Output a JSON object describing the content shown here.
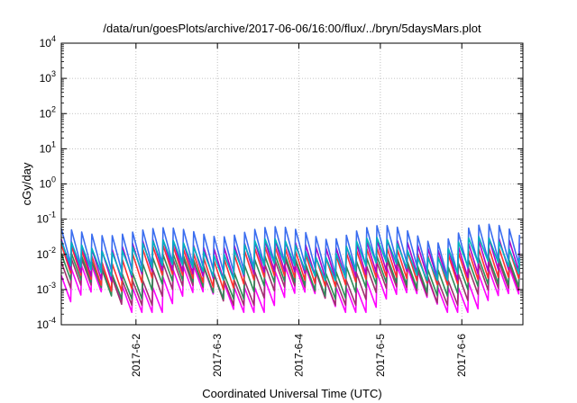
{
  "chart_data": {
    "type": "line",
    "title": "/data/run/goesPlots/archive/2017-06-06/16:00/flux/../bryn/5daysMars.plot",
    "xlabel": "Coordinated Universal Time (UTC)",
    "ylabel": "cGy/day",
    "yscale": "log",
    "ylim": [
      0.0001,
      10000
    ],
    "y_ticks": [
      {
        "base": "10",
        "exp": "-4"
      },
      {
        "base": "10",
        "exp": "-3"
      },
      {
        "base": "10",
        "exp": "-2"
      },
      {
        "base": "10",
        "exp": "-1"
      },
      {
        "base": "10",
        "exp": "0"
      },
      {
        "base": "10",
        "exp": "1"
      },
      {
        "base": "10",
        "exp": "2"
      },
      {
        "base": "10",
        "exp": "3"
      },
      {
        "base": "10",
        "exp": "4"
      }
    ],
    "xlim": [
      "2017-06-01T02:00",
      "2017-06-06T18:00"
    ],
    "x_ticks": [
      "2017-6-2",
      "2017-6-3",
      "2017-6-4",
      "2017-6-5",
      "2017-6-6"
    ],
    "grid": true,
    "series": [
      {
        "color": "#ff00ff",
        "sawtooth_low": 0.0005,
        "sawtooth_high": 0.0025
      },
      {
        "color": "#a03070",
        "sawtooth_low": 0.0008,
        "sawtooth_high": 0.004
      },
      {
        "color": "#2e8b57",
        "sawtooth_low": 0.0012,
        "sawtooth_high": 0.006
      },
      {
        "color": "#ff3030",
        "sawtooth_low": 0.002,
        "sawtooth_high": 0.012
      },
      {
        "color": "#b000c8",
        "sawtooth_low": 0.003,
        "sawtooth_high": 0.02
      },
      {
        "color": "#3a6df0",
        "sawtooth_low": 0.005,
        "sawtooth_high": 0.045
      },
      {
        "color": "#00b0c0",
        "sawtooth_low": 0.004,
        "sawtooth_high": 0.018
      }
    ],
    "period_hours": 3
  }
}
